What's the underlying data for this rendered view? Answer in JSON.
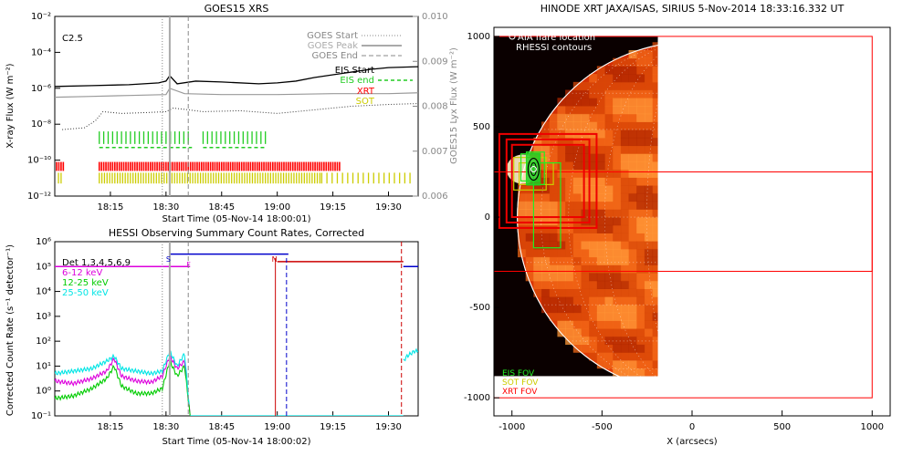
{
  "chart_data": [
    {
      "id": "goes_xrs",
      "type": "line",
      "title": "GOES15 XRS",
      "xlabel": "Start Time (05-Nov-14 18:00:01)",
      "ylabel": "X-ray Flux (W m⁻²)",
      "ylabel_right": "GOES15 Lyx Flux (W m⁻²)",
      "x_ticks": [
        "18:15",
        "18:30",
        "18:45",
        "19:00",
        "19:15",
        "19:30"
      ],
      "x_tick_minutes": [
        15,
        30,
        45,
        60,
        75,
        90
      ],
      "xlim_minutes": [
        0,
        98
      ],
      "y_log": true,
      "ylim_exp": [
        -12,
        -2
      ],
      "y_ticks": [
        "10⁻²",
        "10⁻⁴",
        "10⁻⁶",
        "10⁻⁸",
        "10⁻¹⁰",
        "10⁻¹²"
      ],
      "y_tick_exp": [
        -2,
        -4,
        -6,
        -8,
        -10,
        -12
      ],
      "ylim_right": [
        0.006,
        0.01
      ],
      "y_ticks_right": [
        "0.010",
        "0.009",
        "0.008",
        "0.007",
        "0.006"
      ],
      "y_tick_values_right": [
        0.01,
        0.009,
        0.008,
        0.007,
        0.006
      ],
      "class_label": "C2.5",
      "legend": [
        {
          "label": "GOES Start",
          "style": "dotted",
          "color": "#888888"
        },
        {
          "label": "GOES Peak",
          "style": "solid",
          "color": "#aaaaaa"
        },
        {
          "label": "GOES End",
          "style": "dashed",
          "color": "#888888"
        },
        {
          "label": "EIS Start",
          "style": "green-ticks",
          "color": "#000000"
        },
        {
          "label": "EIS end",
          "style": "green-dashes",
          "color": "#22cc22"
        },
        {
          "label": "XRT",
          "style": "text",
          "color": "#ff0000"
        },
        {
          "label": "SOT",
          "style": "text",
          "color": "#cccc00"
        }
      ],
      "event_lines_minutes": {
        "start": 29,
        "peak": 31,
        "end": 36
      },
      "series": [
        {
          "style": "solid-black",
          "minutes": [
            0,
            10,
            20,
            28,
            30,
            31,
            33,
            38,
            45,
            55,
            60,
            65,
            70,
            75,
            80,
            85,
            90,
            98
          ],
          "exp": [
            -5.9,
            -5.85,
            -5.8,
            -5.7,
            -5.6,
            -5.3,
            -5.75,
            -5.6,
            -5.65,
            -5.75,
            -5.7,
            -5.6,
            -5.4,
            -5.25,
            -5.1,
            -4.95,
            -4.85,
            -4.8
          ]
        },
        {
          "style": "solid-gray",
          "minutes": [
            0,
            10,
            20,
            30,
            31,
            35,
            45,
            60,
            75,
            90,
            98
          ],
          "exp": [
            -6.5,
            -6.45,
            -6.4,
            -6.35,
            -6.0,
            -6.3,
            -6.35,
            -6.35,
            -6.3,
            -6.3,
            -6.25
          ]
        },
        {
          "style": "dotted-black",
          "minutes": [
            2,
            8,
            11,
            13,
            18,
            25,
            30,
            32,
            40,
            50,
            60,
            70,
            80,
            90,
            98
          ],
          "exp": [
            -8.3,
            -8.2,
            -7.8,
            -7.3,
            -7.4,
            -7.35,
            -7.3,
            -7.1,
            -7.3,
            -7.25,
            -7.4,
            -7.2,
            -7.0,
            -6.9,
            -6.85
          ]
        }
      ],
      "eis_windows_minutes": [
        [
          12,
          37
        ],
        [
          40,
          57
        ]
      ],
      "xrt_windows_minutes": [
        [
          0.5,
          2.5
        ],
        [
          12,
          77
        ]
      ],
      "sot_windows_minutes": [
        [
          1,
          2
        ],
        [
          12,
          72
        ],
        [
          72,
          97
        ]
      ]
    },
    {
      "id": "hessi",
      "type": "line",
      "title": "HESSI Observing Summary Count Rates, Corrected",
      "xlabel": "Start Time (05-Nov-14 18:00:02)",
      "ylabel": "Corrected Count Rate (s⁻¹ detector⁻¹)",
      "x_ticks": [
        "18:15",
        "18:30",
        "18:45",
        "19:00",
        "19:15",
        "19:30"
      ],
      "x_tick_minutes": [
        15,
        30,
        45,
        60,
        75,
        90
      ],
      "xlim_minutes": [
        0,
        98
      ],
      "y_log": true,
      "ylim_exp": [
        -1,
        6
      ],
      "y_ticks": [
        "10⁶",
        "10⁵",
        "10⁴",
        "10³",
        "10²",
        "10¹",
        "10⁰",
        "10⁻¹"
      ],
      "y_tick_exp": [
        6,
        5,
        4,
        3,
        2,
        1,
        0,
        -1
      ],
      "det_label": "Det 1,3,4,5,6,9",
      "legend": [
        {
          "label": "6-12 keV",
          "color": "#dd00dd"
        },
        {
          "label": "12-25 keV",
          "color": "#00cc00"
        },
        {
          "label": "25-50 keV",
          "color": "#00e5e5"
        }
      ],
      "markers": [
        {
          "label": "S",
          "minute": 31,
          "color": "#0000cc"
        },
        {
          "label": "F",
          "minute": 36.5,
          "color": "#dd00dd"
        },
        {
          "label": "N",
          "minute": 59.5,
          "color": "#cc0000"
        }
      ],
      "attenuator_levels": [
        {
          "color": "#dd00dd",
          "minutes": [
            0,
            36.5
          ],
          "exp": 5
        },
        {
          "color": "#0000cc",
          "minutes": [
            31,
            63
          ],
          "exp": 5.5
        },
        {
          "color": "#cc0000",
          "minutes": [
            60,
            94
          ],
          "exp": 5.2
        },
        {
          "color": "#0000cc",
          "minutes": [
            94,
            98
          ],
          "exp": 5
        }
      ],
      "series": [
        {
          "name": "6-12 keV",
          "color": "#dd00dd",
          "minutes": [
            0,
            5,
            10,
            14,
            16,
            18,
            22,
            26,
            29,
            31,
            33,
            35,
            36.5
          ],
          "exp": [
            0.4,
            0.3,
            0.5,
            0.8,
            1.3,
            0.6,
            0.4,
            0.35,
            0.6,
            1.4,
            0.9,
            1.2,
            -1
          ]
        },
        {
          "name": "12-25 keV",
          "color": "#00cc00",
          "minutes": [
            0,
            5,
            10,
            14,
            16,
            18,
            22,
            26,
            29,
            31,
            33,
            35,
            36.5
          ],
          "exp": [
            -0.3,
            -0.2,
            0.1,
            0.5,
            1.0,
            0.2,
            -0.1,
            -0.1,
            0.1,
            1.2,
            0.6,
            1.0,
            -1
          ]
        },
        {
          "name": "25-50 keV",
          "color": "#00e5e5",
          "minutes": [
            0,
            5,
            10,
            14,
            16,
            18,
            22,
            26,
            29,
            31,
            33,
            35,
            36.5,
            94,
            95,
            96,
            97,
            98
          ],
          "exp": [
            0.7,
            0.8,
            0.9,
            1.2,
            1.4,
            0.9,
            0.8,
            0.7,
            0.8,
            1.6,
            1.0,
            1.5,
            -1,
            1.2,
            1.4,
            1.5,
            1.6,
            1.6
          ]
        }
      ],
      "event_lines_minutes": {
        "start": 29,
        "peak": 31,
        "end": 36
      }
    },
    {
      "id": "xrt_image",
      "type": "heatmap",
      "title": "HINODE XRT JAXA/ISAS, SIRIUS  5-Nov-2014 18:33:16.332 UT",
      "xlabel": "X (arcsecs)",
      "x_ticks": [
        "-1000",
        "-500",
        "0",
        "500",
        "1000"
      ],
      "x_tick_values": [
        -1000,
        -500,
        0,
        500,
        1000
      ],
      "y_ticks": [
        "1000",
        "500",
        "0",
        "-500",
        "-1000"
      ],
      "y_tick_values": [
        1000,
        500,
        0,
        -500,
        -1000
      ],
      "xlim": [
        -1100,
        1100
      ],
      "ylim": [
        -1100,
        1050
      ],
      "legend_top": [
        "AIA flare location",
        "RHESSI contours"
      ],
      "legend_bottom": [
        {
          "label": "EIS FOV",
          "color": "#22ee22"
        },
        {
          "label": "SOT FOV",
          "color": "#cccc00"
        },
        {
          "label": "XRT FOV",
          "color": "#ff0000"
        }
      ],
      "image_extent": {
        "x": [
          -1100,
          -190
        ],
        "y": [
          -880,
          1000
        ]
      },
      "solar_radius": 970,
      "flare_location": {
        "x": -880,
        "y": 265
      },
      "xrt_fov": [
        {
          "x": [
            -1100,
            1000
          ],
          "y": [
            -1000,
            1000
          ]
        },
        {
          "x": [
            -1100,
            1000
          ],
          "y": [
            -300,
            250
          ]
        }
      ],
      "red_boxes": [
        {
          "x": [
            -1000,
            -600
          ],
          "y": [
            0,
            400
          ]
        },
        {
          "x": [
            -1030,
            -570
          ],
          "y": [
            -30,
            430
          ]
        },
        {
          "x": [
            -1070,
            -530
          ],
          "y": [
            -60,
            460
          ]
        }
      ],
      "eis_boxes": [
        {
          "x": [
            -880,
            -730
          ],
          "y": [
            -170,
            300
          ]
        },
        {
          "x": [
            -950,
            -850
          ],
          "y": [
            200,
            350
          ]
        },
        {
          "x": [
            -920,
            -820
          ],
          "y": [
            180,
            360
          ]
        }
      ],
      "sot_boxes": [
        {
          "x": [
            -990,
            -810
          ],
          "y": [
            150,
            330
          ]
        },
        {
          "x": [
            -960,
            -770
          ],
          "y": [
            180,
            300
          ]
        }
      ]
    }
  ]
}
